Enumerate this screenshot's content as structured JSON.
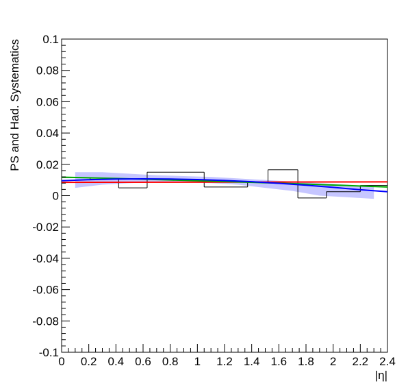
{
  "chart_data": {
    "type": "line",
    "title": "",
    "xlabel": "|η|",
    "ylabel": "PS and Had. Systematics",
    "xlim": [
      0,
      2.4
    ],
    "ylim": [
      -0.1,
      0.1
    ],
    "x_ticks": [
      "0",
      "0.2",
      "0.4",
      "0.6",
      "0.8",
      "1",
      "1.2",
      "1.4",
      "1.6",
      "1.8",
      "2",
      "2.2",
      "2.4"
    ],
    "y_ticks": [
      "-0.1",
      "-0.08",
      "-0.06",
      "-0.04",
      "-0.02",
      "0",
      "0.02",
      "0.04",
      "0.06",
      "0.08",
      "0.1"
    ],
    "grid": false,
    "histogram": {
      "color": "#000000",
      "bins": [
        {
          "x0": 0.0,
          "x1": 0.21,
          "y": 0.0115
        },
        {
          "x0": 0.21,
          "x1": 0.42,
          "y": 0.0105
        },
        {
          "x0": 0.42,
          "x1": 0.63,
          "y": 0.005
        },
        {
          "x0": 0.63,
          "x1": 1.05,
          "y": 0.015
        },
        {
          "x0": 1.05,
          "x1": 1.37,
          "y": 0.0055
        },
        {
          "x0": 1.37,
          "x1": 1.52,
          "y": 0.0085
        },
        {
          "x0": 1.52,
          "x1": 1.74,
          "y": 0.0165
        },
        {
          "x0": 1.74,
          "x1": 1.95,
          "y": -0.0015
        },
        {
          "x0": 1.95,
          "x1": 2.2,
          "y": 0.0025
        },
        {
          "x0": 2.2,
          "x1": 2.4,
          "y": 0.0065
        }
      ]
    },
    "band": {
      "color": "#b3b3ff",
      "x": [
        0.1,
        0.3,
        0.5,
        0.7,
        0.9,
        1.1,
        1.3,
        1.5,
        1.7,
        1.9,
        2.1,
        2.3
      ],
      "upper": [
        0.015,
        0.015,
        0.014,
        0.013,
        0.0125,
        0.012,
        0.011,
        0.01,
        0.009,
        0.008,
        0.007,
        0.006
      ],
      "lower": [
        0.005,
        0.007,
        0.008,
        0.0085,
        0.0085,
        0.008,
        0.007,
        0.005,
        0.003,
        0.0,
        -0.001,
        -0.002
      ]
    },
    "series": [
      {
        "color": "#ff0000",
        "x": [
          0.0,
          2.4
        ],
        "values": [
          0.0085,
          0.0088
        ]
      },
      {
        "color": "#00aa00",
        "x": [
          0.0,
          0.4,
          0.8,
          1.2,
          1.6,
          2.0,
          2.4
        ],
        "values": [
          0.0118,
          0.011,
          0.01,
          0.009,
          0.008,
          0.0068,
          0.0055
        ]
      },
      {
        "color": "#0000ff",
        "x": [
          0.0,
          0.2,
          0.4,
          0.6,
          0.8,
          1.0,
          1.2,
          1.4,
          1.6,
          1.8,
          2.0,
          2.2,
          2.4
        ],
        "values": [
          0.0095,
          0.0102,
          0.0106,
          0.0107,
          0.0106,
          0.0103,
          0.0097,
          0.0089,
          0.0079,
          0.0067,
          0.0053,
          0.0038,
          0.0025
        ]
      }
    ]
  }
}
